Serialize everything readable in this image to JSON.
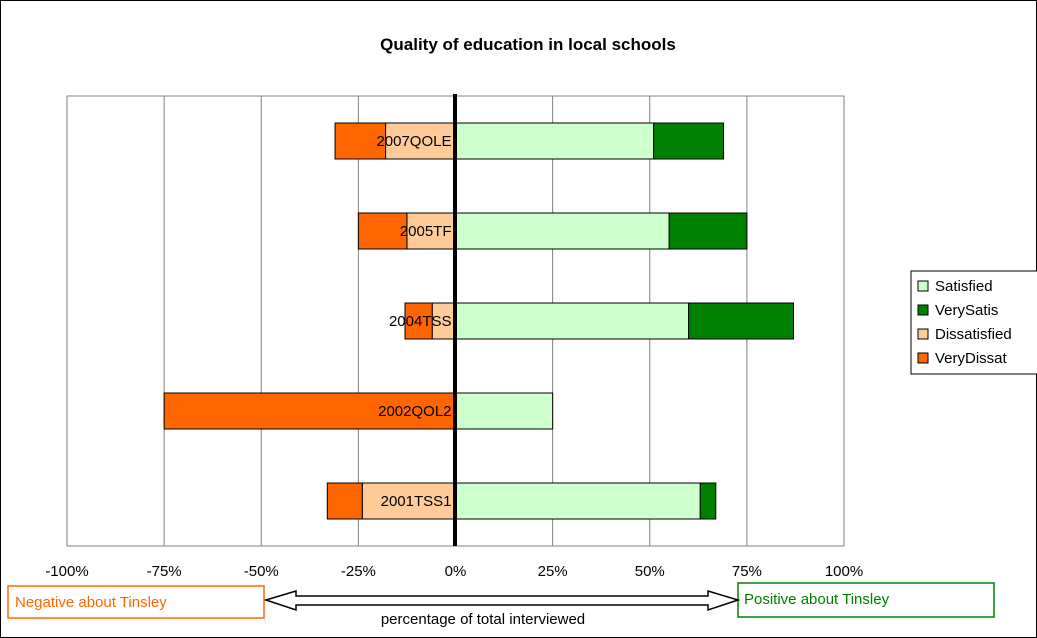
{
  "chart_data": {
    "type": "bar",
    "orientation": "horizontal",
    "stacked": "diverging",
    "title": "Quality of education in local schools",
    "categories": [
      "2007QOLE",
      "2005TF",
      "2004TSS",
      "2002QOL2",
      "2001TSS1"
    ],
    "series": [
      {
        "name": "Satisfied",
        "color": "#ccffcc",
        "side": "positive",
        "values": [
          51,
          55,
          60,
          25,
          63
        ]
      },
      {
        "name": "VerySatis",
        "color": "#008000",
        "side": "positive",
        "values": [
          18,
          20,
          27,
          0,
          4
        ]
      },
      {
        "name": "Dissatisfied",
        "color": "#ffcc99",
        "side": "negative",
        "values": [
          -18,
          -12.5,
          -6,
          0,
          -24
        ]
      },
      {
        "name": "VeryDissat",
        "color": "#ff6600",
        "side": "negative",
        "values": [
          -13,
          -12.5,
          -7,
          -75,
          -9
        ]
      }
    ],
    "xlim": [
      -100,
      100
    ],
    "xticks": [
      "-100%",
      "-75%",
      "-50%",
      "-25%",
      "0%",
      "25%",
      "50%",
      "75%",
      "100%"
    ],
    "grid": "vertical",
    "legend_position": "right",
    "annotations": {
      "negative": "Negative about Tinsley",
      "positive": "Positive about Tinsley",
      "axis_caption": "percentage of total interviewed"
    }
  }
}
